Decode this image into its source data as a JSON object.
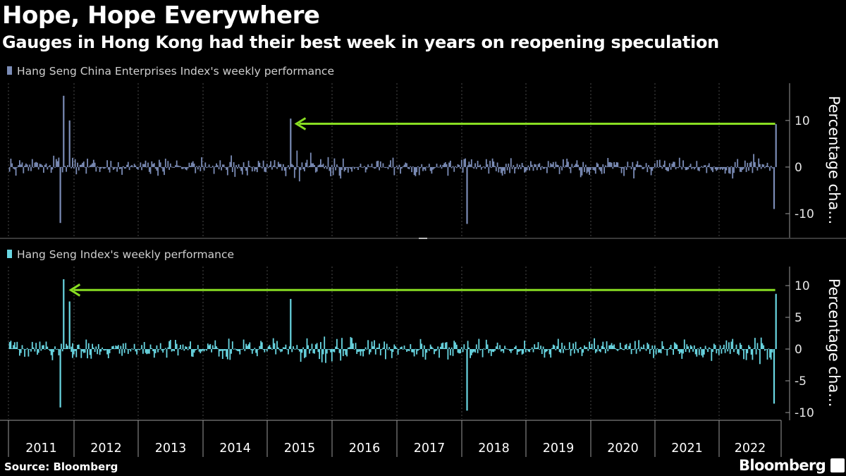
{
  "header": {
    "title": "Hope, Hope Everywhere",
    "subtitle": "Gauges in Hong Kong had their best week in years on reopening speculation"
  },
  "footer": {
    "source": "Source: Bloomberg",
    "brand": "Bloomberg"
  },
  "colors": {
    "background": "#000000",
    "top_series": "#7b8cb6",
    "bottom_series": "#69d6e2",
    "arrow": "#88dd22",
    "grid": "#4a4a4a"
  },
  "chart_data": [
    {
      "type": "bar",
      "title": "Hang Seng China Enterprises Index's weekly performance",
      "legend": "Hang Seng China Enterprises Index's weekly performance",
      "ylabel": "Percentage cha...",
      "ylim": [
        -15,
        18
      ],
      "yticks": [
        10,
        0,
        -10
      ],
      "ytick_labels": [
        "10",
        "0",
        "-10"
      ],
      "x_range": [
        2010.95,
        2023.0
      ],
      "series_color": "#7b8cb6",
      "notable_weeks": [
        {
          "x": 2011.83,
          "value": 15.3
        },
        {
          "x": 2011.78,
          "value": -12.0
        },
        {
          "x": 2011.92,
          "value": 10.0
        },
        {
          "x": 2015.35,
          "value": 10.4
        },
        {
          "x": 2018.07,
          "value": -12.2
        },
        {
          "x": 2022.84,
          "value": -9.0
        },
        {
          "x": 2022.87,
          "value": 9.2
        }
      ],
      "annotation": {
        "type": "arrow",
        "value": 9.3,
        "from_x": 2022.87,
        "to_x": 2015.45
      }
    },
    {
      "type": "bar",
      "title": "Hang Seng Index's weekly performance",
      "legend": "Hang Seng Index's weekly performance",
      "ylabel": "Percentage cha...",
      "ylim": [
        -11,
        13
      ],
      "yticks": [
        10,
        5,
        0,
        -5,
        -10
      ],
      "ytick_labels": [
        "10",
        "5",
        "0",
        "-5",
        "-10"
      ],
      "x_range": [
        2010.95,
        2023.0
      ],
      "series_color": "#69d6e2",
      "notable_weeks": [
        {
          "x": 2011.83,
          "value": 11.0
        },
        {
          "x": 2011.78,
          "value": -9.2
        },
        {
          "x": 2011.92,
          "value": 7.5
        },
        {
          "x": 2015.35,
          "value": 7.9
        },
        {
          "x": 2018.07,
          "value": -9.7
        },
        {
          "x": 2022.84,
          "value": -8.6
        },
        {
          "x": 2022.87,
          "value": 8.7
        }
      ],
      "annotation": {
        "type": "arrow",
        "value": 9.3,
        "from_x": 2022.87,
        "to_x": 2011.95
      }
    }
  ],
  "x_axis": {
    "years": [
      "2011",
      "2012",
      "2013",
      "2014",
      "2015",
      "2016",
      "2017",
      "2018",
      "2019",
      "2020",
      "2021",
      "2022"
    ]
  }
}
